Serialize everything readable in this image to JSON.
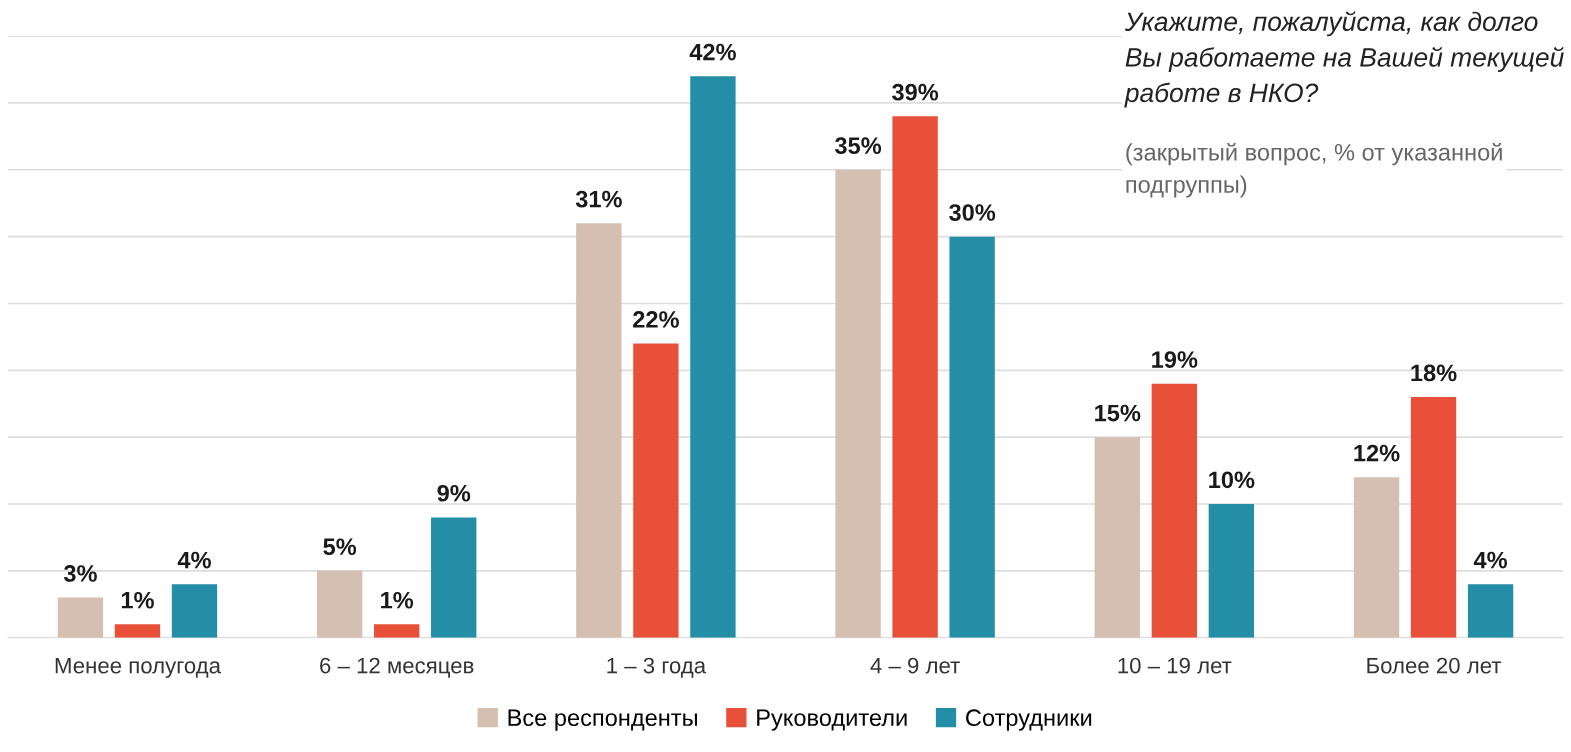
{
  "chart_data": {
    "type": "bar",
    "title": "Укажите, пожалуйста, как долго Вы работаете на Вашей текущей работе в НКО?",
    "subtitle": "(закрытый вопрос, % от указанной подгруппы)",
    "categories": [
      "Менее полугода",
      "6 – 12 месяцев",
      "1 – 3 года",
      "4 – 9 лет",
      "10 – 19 лет",
      "Более 20 лет"
    ],
    "series": [
      {
        "name": "Все респонденты",
        "color": "#d4bfb0",
        "values": [
          3,
          5,
          31,
          35,
          15,
          12
        ],
        "value_labels": [
          "3%",
          "5%",
          "31%",
          "35%",
          "15%",
          "12%"
        ]
      },
      {
        "name": "Руководители",
        "color": "#e9503a",
        "values": [
          1,
          1,
          22,
          39,
          19,
          18
        ],
        "value_labels": [
          "1%",
          "1%",
          "22%",
          "39%",
          "19%",
          "18%"
        ]
      },
      {
        "name": "Сотрудники",
        "color": "#238ea6",
        "values": [
          4,
          9,
          42,
          30,
          10,
          4
        ],
        "value_labels": [
          "4%",
          "9%",
          "42%",
          "30%",
          "10%",
          "4%"
        ]
      }
    ],
    "ylim": [
      0,
      45
    ],
    "yticks": [
      {
        "value": 0,
        "label": null
      },
      {
        "value": 5,
        "label": null
      },
      {
        "value": 10,
        "label": null
      },
      {
        "value": 15,
        "label": null
      },
      {
        "value": 20,
        "label": null
      },
      {
        "value": 25,
        "label": null
      },
      {
        "value": 30,
        "label": null
      },
      {
        "value": 35,
        "label": null
      },
      {
        "value": 40,
        "label": null
      },
      {
        "value": 45,
        "label": null
      }
    ],
    "tick_labels": "x",
    "grid": "y",
    "legend": "bottom"
  }
}
